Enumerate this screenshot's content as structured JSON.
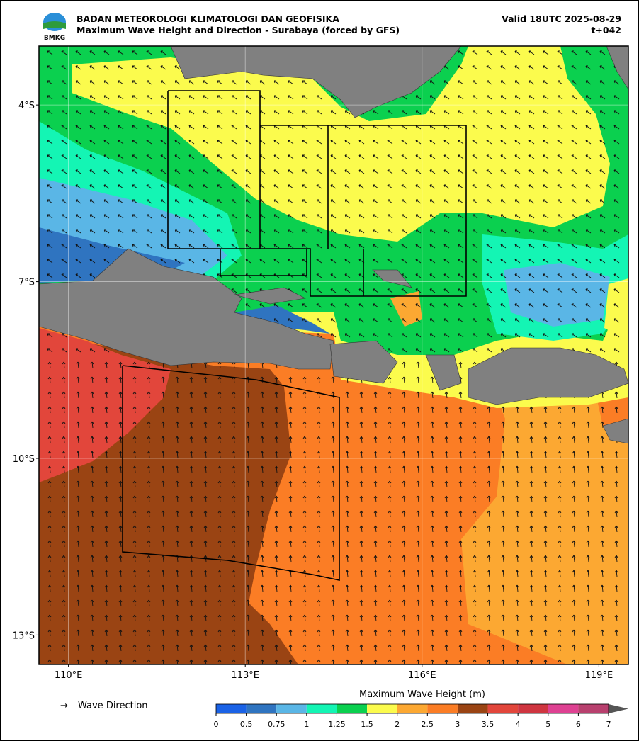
{
  "header": {
    "title": "BADAN METEOROLOGI KLIMATOLOGI DAN GEOFISIKA",
    "subtitle": "Maximum Wave Height and Direction - Surabaya (forced by GFS)",
    "valid": "Valid 18UTC 2025-08-29",
    "lead": "t+042",
    "logo": "BMKG"
  },
  "map": {
    "lon_range": [
      109.5,
      119.5
    ],
    "lat_range": [
      -3,
      -13.5
    ],
    "lon_ticks": [
      {
        "value": 110,
        "label": "110°E"
      },
      {
        "value": 113,
        "label": "113°E"
      },
      {
        "value": 116,
        "label": "116°E"
      },
      {
        "value": 119,
        "label": "119°E"
      }
    ],
    "lat_ticks": [
      {
        "value": -4,
        "label": "4°S"
      },
      {
        "value": -7,
        "label": "7°S"
      },
      {
        "value": -10,
        "label": "10°S"
      },
      {
        "value": -13,
        "label": "13°S"
      }
    ]
  },
  "legend": {
    "symbol": "→",
    "label": "Wave Direction"
  },
  "colorbar": {
    "label": "Maximum Wave Height (m)",
    "bounds": [
      0,
      0.5,
      0.75,
      1,
      1.25,
      1.5,
      2,
      2.5,
      3,
      3.5,
      4,
      5,
      6,
      7
    ],
    "colors": [
      "#1a62e6",
      "#2f74c0",
      "#5ab6e6",
      "#14f5b4",
      "#0bd04f",
      "#fbfb4d",
      "#fca832",
      "#fb7d25",
      "#9a4413",
      "#e2463b",
      "#cf3540",
      "#de4192",
      "#b8406e"
    ],
    "extend_color": "#555555"
  }
}
